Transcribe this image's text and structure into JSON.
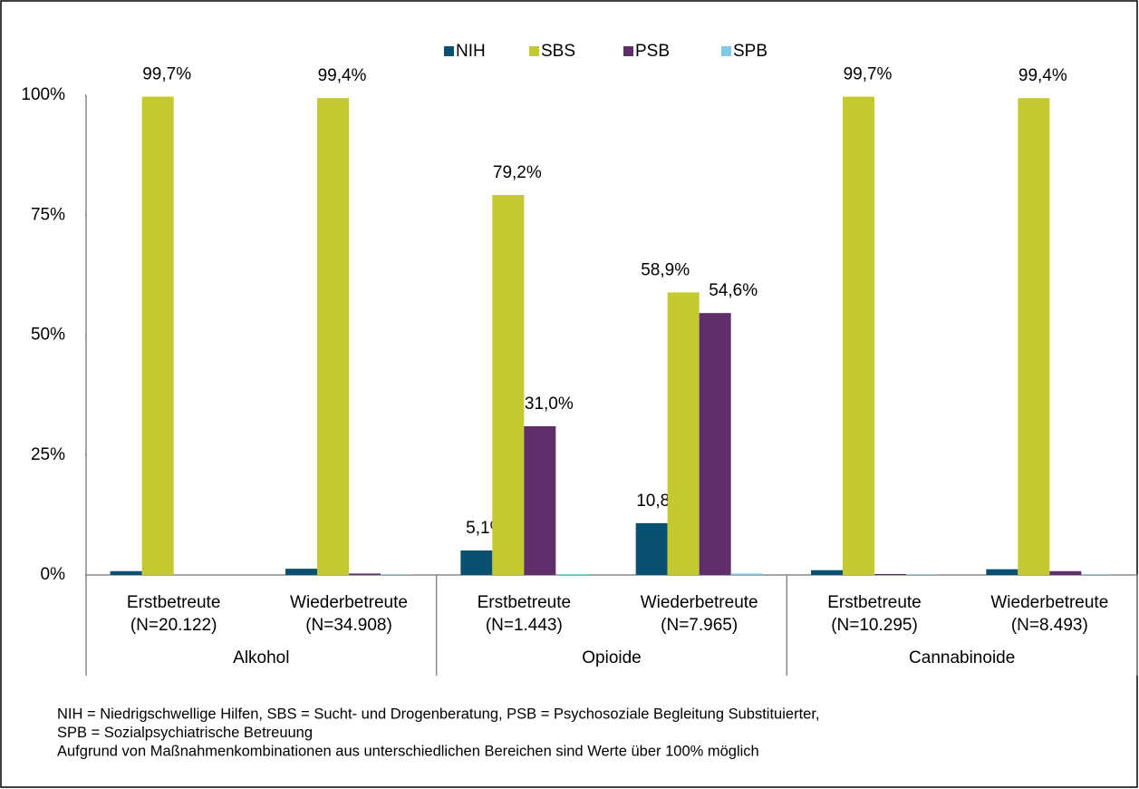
{
  "chart_data": {
    "type": "grouped_bar",
    "categories": [
      [
        "Erstbetreute",
        "(N=20.122)"
      ],
      [
        "Wiederbetreute",
        "(N=34.908)"
      ],
      [
        "Erstbetreute",
        "(N=1.443)"
      ],
      [
        "Wiederbetreute",
        "(N=7.965)"
      ],
      [
        "Erstbetreute",
        "(N=10.295)"
      ],
      [
        "Wiederbetreute",
        "(N=8.493)"
      ]
    ],
    "groups": [
      "Alkohol",
      "Opioide",
      "Cannabinoide"
    ],
    "series": [
      {
        "name": "NIH",
        "color": "#0b4f71",
        "values": [
          0.8,
          1.3,
          5.1,
          10.8,
          1.0,
          1.2
        ],
        "value_labels": [
          null,
          null,
          "5,1%",
          "10,8%",
          null,
          null
        ]
      },
      {
        "name": "SBS",
        "color": "#c3c92f",
        "values": [
          99.7,
          99.4,
          79.2,
          58.9,
          99.7,
          99.4
        ],
        "value_labels": [
          "99,7%",
          "99,4%",
          "79,2%",
          "58,9%",
          "99,7%",
          "99,4%"
        ]
      },
      {
        "name": "PSB",
        "color": "#5f2f6b",
        "values": [
          0,
          0.3,
          31.0,
          54.6,
          0.2,
          0.8
        ],
        "value_labels": [
          null,
          null,
          "31,0%",
          "54,6%",
          null,
          null
        ]
      },
      {
        "name": "SPB",
        "color": "#7ecbe8",
        "values": [
          0,
          0.1,
          0.2,
          0.3,
          0.1,
          0.1
        ],
        "value_labels": [
          null,
          null,
          null,
          null,
          null,
          null
        ]
      }
    ],
    "ylim": [
      0,
      100
    ],
    "yticks": [
      {
        "value": 0,
        "label": "0%"
      },
      {
        "value": 25,
        "label": "25%"
      },
      {
        "value": 50,
        "label": "50%"
      },
      {
        "value": 75,
        "label": "75%"
      },
      {
        "value": 100,
        "label": "100%"
      }
    ],
    "legend": "top",
    "notes": [
      "NIH = Niedrigschwellige Hilfen, SBS = Sucht- und Drogenberatung, PSB = Psychosoziale Begleitung Substituierter,",
      "SPB = Sozialpsychiatrische Betreuung",
      "Aufgrund von Maßnahmenkombinationen aus unterschiedlichen Bereichen sind Werte über 100% möglich"
    ]
  }
}
